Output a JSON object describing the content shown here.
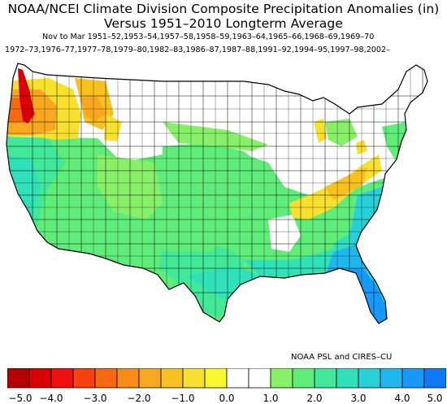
{
  "title_line1": "NOAA/NCEI Climate Division Composite Precipitation Anomalies (in)",
  "title_line2": "Versus 1951–2010 Longterm Average",
  "subtitle_line1": "Nov to Mar   1951–52,1953–54,1957–58,1958–59,1963–64,1965–66,1968–69,1969–70",
  "subtitle_line2": "1972–73,1976–77,1977–78,1979–80,1982–83,1986–87,1987–88,1991–92,1994–95,1997–98,2002–",
  "credit": "NOAA PSL and CIRES–CU",
  "colorbar": {
    "min": -5.0,
    "max": 5.0,
    "step": 0.5,
    "tick_labels": [
      "−5.0",
      "−4.0",
      "−3.0",
      "−2.0",
      "−1.0",
      "0.0",
      "1.0",
      "2.0",
      "3.0",
      "4.0",
      "5.0"
    ],
    "colors": [
      "#b30000",
      "#d80000",
      "#f01010",
      "#f84010",
      "#f86810",
      "#f88c18",
      "#f8a820",
      "#f8c020",
      "#f8e030",
      "#f8f830",
      "#ffffff",
      "#ffffff",
      "#88f068",
      "#60ec78",
      "#40e898",
      "#30e0b8",
      "#28d0d8",
      "#20b8ec",
      "#1898f8",
      "#1078f8"
    ]
  },
  "regions": [
    {
      "name": "Pacific Northwest coast",
      "anomaly": -4.5,
      "color": "#d80000"
    },
    {
      "name": "Western Washington / Oregon",
      "anomaly": -3.0,
      "color": "#f86810"
    },
    {
      "name": "Northern Idaho / Montana",
      "anomaly": -1.5,
      "color": "#f8c020"
    },
    {
      "name": "California",
      "anomaly": 1.5,
      "color": "#40e898"
    },
    {
      "name": "Southwest",
      "anomaly": 1.0,
      "color": "#60ec78"
    },
    {
      "name": "Central Plains",
      "anomaly": 0.5,
      "color": "#88f068"
    },
    {
      "name": "Ohio Valley",
      "anomaly": -1.0,
      "color": "#f8e030"
    },
    {
      "name": "Gulf Coast",
      "anomaly": 2.0,
      "color": "#30e0b8"
    },
    {
      "name": "Southeast / Florida",
      "anomaly": 3.0,
      "color": "#1898f8"
    },
    {
      "name": "Atlantic Coast",
      "anomaly": 1.5,
      "color": "#40e898"
    }
  ]
}
